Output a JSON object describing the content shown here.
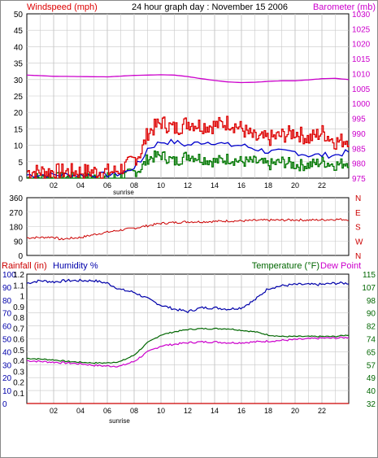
{
  "colors": {
    "windspeed": "#dd0000",
    "windavg": "#0000cc",
    "windmin": "#007700",
    "barometer": "#cc00cc",
    "direction": "#cc0000",
    "rainfall": "#cc0000",
    "humidity": "#0000aa",
    "temperature": "#006600",
    "dewpoint": "#cc00cc",
    "grid": "#c8c8c8",
    "frame": "#000000"
  },
  "chart_data": [
    {
      "type": "line",
      "title": "24 hour graph day : November 15 2006",
      "ylabel_left": "Windspeed (mph)",
      "ylabel_right": "Barometer (mb)",
      "x_ticks": [
        "02",
        "04",
        "06",
        "08",
        "10",
        "12",
        "14",
        "16",
        "18",
        "20",
        "22"
      ],
      "sunrise_label": "sunrise",
      "y_left_ticks": [
        "0",
        "5",
        "10",
        "15",
        "20",
        "25",
        "30",
        "35",
        "40",
        "45",
        "50"
      ],
      "y_right_ticks": [
        "975",
        "980",
        "985",
        "990",
        "995",
        "1000",
        "1005",
        "1010",
        "1015",
        "1020",
        "1025",
        "1030"
      ],
      "ylim_left": [
        0,
        50
      ],
      "ylim_right": [
        975,
        1030
      ],
      "grid": true,
      "series": [
        {
          "name": "Windspeed (mph)",
          "axis": "left",
          "x": [
            0,
            3,
            5,
            6.5,
            7.5,
            8.5,
            9,
            10,
            11,
            12,
            13,
            14,
            15,
            16,
            17,
            18,
            19,
            20,
            21,
            22,
            23,
            24
          ],
          "y": [
            2,
            2,
            2,
            2,
            4,
            8,
            14,
            17,
            15,
            17,
            16,
            16,
            17,
            15,
            12,
            12,
            13,
            14,
            12,
            14,
            11,
            12
          ]
        },
        {
          "name": "",
          "axis": "left",
          "x": [
            0,
            3,
            5,
            6.5,
            7.5,
            8.5,
            9,
            10,
            11,
            12,
            13,
            14,
            15,
            16,
            17,
            18,
            19,
            20,
            21,
            22,
            23,
            24
          ],
          "y": [
            1,
            1,
            1,
            1,
            2,
            5,
            9,
            11,
            11,
            10,
            11,
            11,
            10,
            10,
            9,
            8,
            8,
            8,
            7,
            7,
            7,
            8
          ]
        },
        {
          "name": "",
          "axis": "left",
          "x": [
            0,
            3,
            5,
            6.5,
            7.5,
            8.5,
            9,
            10,
            11,
            12,
            13,
            14,
            15,
            16,
            17,
            18,
            19,
            20,
            21,
            22,
            23,
            24
          ],
          "y": [
            0,
            0,
            0,
            0,
            1,
            3,
            6,
            7,
            5,
            7,
            6,
            5,
            6,
            5,
            5,
            4,
            5,
            4,
            4,
            5,
            4,
            5
          ]
        },
        {
          "name": "Barometer (mb)",
          "axis": "right",
          "x": [
            0,
            2,
            4,
            6,
            8,
            10,
            11,
            12,
            13,
            14,
            15,
            16,
            17,
            18,
            19,
            20,
            21,
            22,
            23,
            24
          ],
          "y": [
            1009.5,
            1009.1,
            1009.0,
            1008.9,
            1009.4,
            1009.6,
            1009.5,
            1009.0,
            1008.3,
            1007.7,
            1007.2,
            1007.0,
            1007.1,
            1007.4,
            1007.6,
            1007.6,
            1007.9,
            1008.3,
            1008.4,
            1008.0
          ]
        }
      ]
    },
    {
      "type": "line",
      "y_left_ticks": [
        "0",
        "90",
        "180",
        "270",
        "360"
      ],
      "y_right_ticks": [
        "N",
        "E",
        "S",
        "W",
        "N"
      ],
      "ylim": [
        0,
        360
      ],
      "grid": true,
      "series": [
        {
          "name": "",
          "x": [
            0,
            1,
            2,
            2.5,
            3,
            4,
            5,
            6,
            7,
            8,
            9,
            10,
            11,
            12,
            13,
            14,
            15,
            16,
            17,
            18,
            19,
            20,
            21,
            22,
            23,
            24
          ],
          "y": [
            110,
            112,
            115,
            100,
            105,
            112,
            130,
            145,
            158,
            170,
            185,
            200,
            205,
            210,
            210,
            212,
            215,
            215,
            218,
            220,
            220,
            222,
            220,
            222,
            225,
            224
          ]
        }
      ]
    },
    {
      "type": "line",
      "ylabel_left": "Rainfall (in)",
      "ylabel_left2": "Humidity %",
      "ylabel_right": "Temperature (°F)",
      "ylabel_right2": "Dew Point",
      "x_ticks": [
        "02",
        "04",
        "06",
        "08",
        "10",
        "12",
        "14",
        "16",
        "18",
        "20",
        "22"
      ],
      "sunrise_label": "sunrise",
      "humidity_ticks": [
        "0",
        "10",
        "20",
        "30",
        "40",
        "50",
        "60",
        "70",
        "80",
        "90",
        "100"
      ],
      "rain_ticks": [
        "0.1",
        "0.2",
        "0.3",
        "0.4",
        "0.5",
        "0.6",
        "0.7",
        "0.8",
        "0.9",
        "1",
        "1.1",
        "1.2"
      ],
      "temp_ticks": [
        "32",
        "40",
        "49",
        "57",
        "65",
        "74",
        "82",
        "90",
        "98",
        "107",
        "115"
      ],
      "ylim_left": [
        0,
        100
      ],
      "ylim_right": [
        32,
        115
      ],
      "grid": true,
      "series": [
        {
          "name": "Humidity %",
          "axis": "left",
          "x": [
            0,
            1,
            2,
            3,
            4,
            5,
            6,
            7,
            8,
            9,
            10,
            11,
            12,
            13,
            14,
            15,
            16,
            17,
            18,
            19,
            20,
            21,
            22,
            23,
            24
          ],
          "y": [
            93,
            95,
            94,
            95,
            95,
            95,
            93,
            88,
            86,
            81,
            76,
            73,
            71,
            74,
            74,
            73,
            74,
            80,
            89,
            91,
            92,
            92,
            92,
            93,
            93
          ]
        },
        {
          "name": "Temperature (°F)",
          "axis": "right",
          "x": [
            0,
            1,
            2,
            3,
            4,
            5,
            6,
            7,
            8,
            9,
            10,
            11,
            12,
            13,
            14,
            15,
            16,
            17,
            18,
            19,
            20,
            21,
            22,
            23,
            24
          ],
          "y": [
            61,
            60.5,
            60,
            59,
            58.5,
            58,
            58,
            59,
            63,
            71,
            76,
            78,
            79.5,
            80,
            80,
            80,
            79,
            78,
            76,
            75,
            75,
            75,
            75,
            75,
            76
          ]
        },
        {
          "name": "Dew Point",
          "axis": "right",
          "x": [
            0,
            1,
            2,
            3,
            4,
            5,
            6,
            7,
            8,
            9,
            10,
            11,
            12,
            13,
            14,
            15,
            16,
            17,
            18,
            19,
            20,
            21,
            22,
            23,
            24
          ],
          "y": [
            59.5,
            59,
            58.5,
            58,
            57.5,
            56.5,
            56,
            56,
            59,
            65,
            69,
            70,
            71,
            71.5,
            71.5,
            71,
            71,
            71.5,
            72,
            72.5,
            73,
            73.5,
            74,
            74,
            74.5
          ]
        },
        {
          "name": "Rainfall (in)",
          "axis": "left",
          "x": [
            0,
            24
          ],
          "y": [
            0,
            0
          ]
        }
      ]
    }
  ]
}
